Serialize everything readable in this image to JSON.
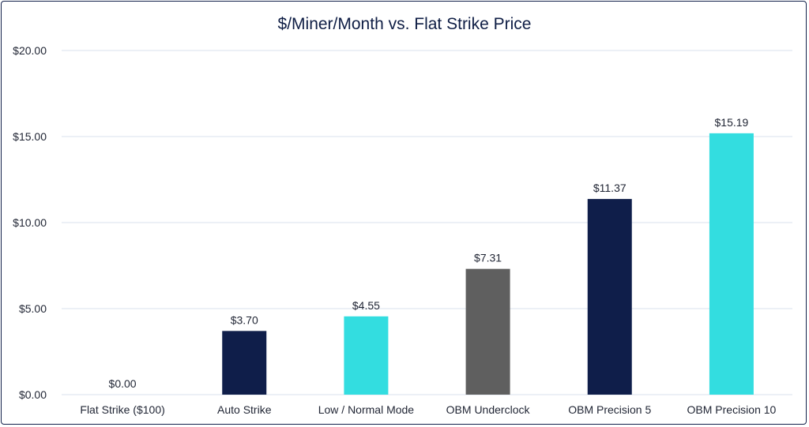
{
  "chart_data": {
    "type": "bar",
    "title": "$/Miner/Month vs. Flat Strike Price",
    "categories": [
      "Flat Strike ($100)",
      "Auto Strike",
      "Low / Normal Mode",
      "OBM Underclock",
      "OBM Precision 5",
      "OBM Precision 10"
    ],
    "values": [
      0.0,
      3.7,
      4.55,
      7.31,
      11.37,
      15.19
    ],
    "data_labels": [
      "$0.00",
      "$3.70",
      "$4.55",
      "$7.31",
      "$11.37",
      "$15.19"
    ],
    "colors": [
      "#0f1e4a",
      "#0f1e4a",
      "#33dde0",
      "#5f5f5f",
      "#0f1e4a",
      "#33dde0"
    ],
    "ylim": [
      0,
      20
    ],
    "yticks": [
      0,
      5,
      10,
      15,
      20
    ],
    "ytick_labels": [
      "$0.00",
      "$5.00",
      "$10.00",
      "$15.00",
      "$20.00"
    ],
    "grid": true,
    "legend": "none"
  }
}
